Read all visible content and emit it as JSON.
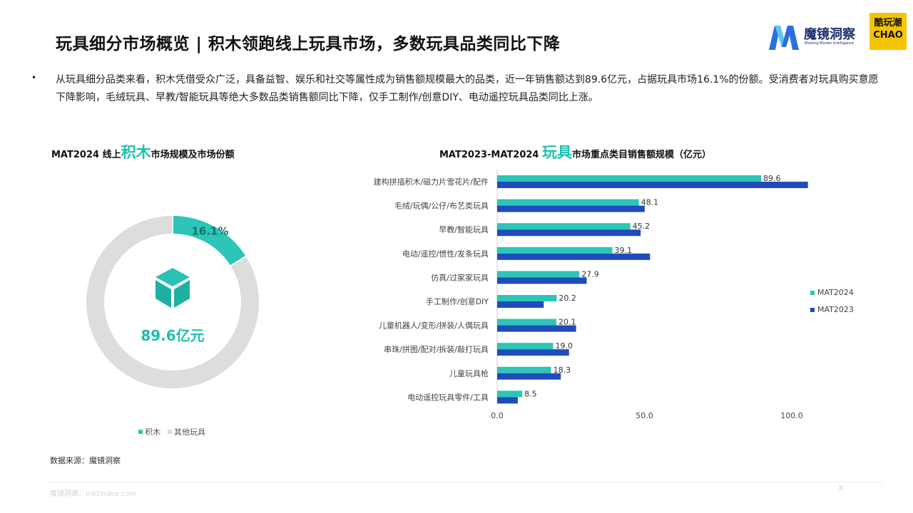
{
  "header": {
    "title": "玩具细分市场概览 | 积木领跑线上玩具市场，多数玩具品类同比下降",
    "brand_name": "魔镜洞察",
    "brand_sub": "Moojing Market Intelligence",
    "partner_logo_top": "酷玩潮",
    "partner_logo_bottom": "CHAO"
  },
  "bullet": {
    "symbol": "•",
    "text": "从玩具细分品类来看，积木凭借受众广泛，具备益智、娱乐和社交等属性成为销售额规模最大的品类，近一年销售额达到89.6亿元，占据玩具市场16.1%的份额。受消费者对玩具购买意愿下降影响，毛绒玩具、早教/智能玩具等绝大多数品类销售额同比下降，仅手工制作/创意DIY、电动遥控玩具品类同比上涨。"
  },
  "left_chart": {
    "title_prefix": "MAT2024 线上",
    "title_highlight": "积木",
    "title_suffix": "市场规模及市场份额"
  },
  "right_chart": {
    "title_prefix": "MAT2023-MAT2024 ",
    "title_highlight": "玩具",
    "title_suffix": "市场重点类目销售额规模（亿元）"
  },
  "colors": {
    "teal": "#2cc5b8",
    "blue": "#1f4bbd",
    "gray": "#dddddd",
    "accent_text": "#1fbfb0"
  },
  "icons": {
    "brand": "moojing-m-logo",
    "donut_center": "cube-icon"
  },
  "chart_data": [
    {
      "type": "pie",
      "slices": [
        {
          "name": "积木",
          "value": 16.1
        },
        {
          "name": "其他玩具",
          "value": 83.9
        }
      ],
      "slice_label": "16.1%",
      "center_label": "89.6亿元",
      "legend": [
        "积木",
        "其他玩具"
      ],
      "legend_position": "bottom"
    },
    {
      "type": "bar",
      "orientation": "horizontal",
      "categories": [
        "建构拼插积木/磁力片雪花片/配件",
        "毛绒/玩偶/公仔/布艺类玩具",
        "早教/智能玩具",
        "电动/遥控/惯性/发条玩具",
        "仿真/过家家玩具",
        "手工制作/创意DIY",
        "儿童机器人/变形/拼装/人偶玩具",
        "串珠/拼图/配对/拆装/敲打玩具",
        "儿童玩具枪",
        "电动遥控玩具零件/工具"
      ],
      "series": [
        {
          "name": "MAT2024",
          "values": [
            89.6,
            48.1,
            45.2,
            39.1,
            27.9,
            20.2,
            20.1,
            19.0,
            18.3,
            8.5
          ]
        },
        {
          "name": "MAT2023",
          "values": [
            105.5,
            50.1,
            48.7,
            51.9,
            30.4,
            15.8,
            26.8,
            24.4,
            21.6,
            7.0
          ]
        }
      ],
      "data_labels": [
        "89.6",
        "48.1",
        "45.2",
        "39.1",
        "27.9",
        "20.2",
        "20.1",
        "19.0",
        "18.3",
        "8.5"
      ],
      "x_ticks": [
        "0.0",
        "50.0",
        "100.0"
      ],
      "xlim": [
        0,
        115
      ],
      "grid": false,
      "legend_position": "right"
    }
  ],
  "footer": {
    "source": "数据来源：魔镜洞察",
    "site": "魔镜洞察：mktindex.com",
    "page": "8"
  }
}
